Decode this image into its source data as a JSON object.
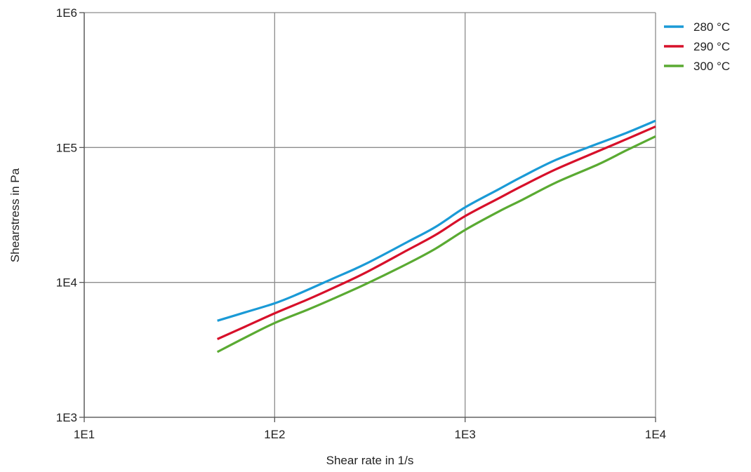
{
  "chart_data": {
    "type": "line",
    "title": "",
    "xlabel": "Shear rate in  1/s",
    "ylabel": "Shearstress in  Pa",
    "x_scale": "log",
    "y_scale": "log",
    "xlim": [
      10,
      10000
    ],
    "ylim": [
      1000,
      1000000
    ],
    "x_ticks": [
      {
        "value": 10,
        "label": "1E1"
      },
      {
        "value": 100,
        "label": "1E2"
      },
      {
        "value": 1000,
        "label": "1E3"
      },
      {
        "value": 10000,
        "label": "1E4"
      }
    ],
    "y_ticks": [
      {
        "value": 1000,
        "label": "1E3"
      },
      {
        "value": 10000,
        "label": "1E4"
      },
      {
        "value": 100000,
        "label": "1E5"
      },
      {
        "value": 1000000,
        "label": "1E6"
      }
    ],
    "grid": true,
    "legend_position": "top-right",
    "series": [
      {
        "name": "280 °C",
        "color": "#1a9ad6",
        "points": [
          [
            50,
            5200
          ],
          [
            70,
            6000
          ],
          [
            100,
            7000
          ],
          [
            130,
            8100
          ],
          [
            200,
            10600
          ],
          [
            300,
            13700
          ],
          [
            500,
            20000
          ],
          [
            700,
            25800
          ],
          [
            1000,
            36000
          ],
          [
            1500,
            49000
          ],
          [
            2000,
            61000
          ],
          [
            3000,
            81000
          ],
          [
            5000,
            107000
          ],
          [
            7000,
            128000
          ],
          [
            10000,
            158000
          ]
        ]
      },
      {
        "name": "290 °C",
        "color": "#d7102a",
        "points": [
          [
            50,
            3800
          ],
          [
            70,
            4700
          ],
          [
            100,
            5900
          ],
          [
            150,
            7500
          ],
          [
            200,
            9000
          ],
          [
            300,
            11800
          ],
          [
            500,
            17400
          ],
          [
            700,
            22500
          ],
          [
            1000,
            31000
          ],
          [
            1500,
            42000
          ],
          [
            2000,
            52000
          ],
          [
            3000,
            69000
          ],
          [
            5000,
            94000
          ],
          [
            7000,
            115000
          ],
          [
            10000,
            143000
          ]
        ]
      },
      {
        "name": "300 °C",
        "color": "#5aaa32",
        "points": [
          [
            50,
            3050
          ],
          [
            70,
            3900
          ],
          [
            100,
            5000
          ],
          [
            150,
            6300
          ],
          [
            200,
            7500
          ],
          [
            300,
            9700
          ],
          [
            500,
            13800
          ],
          [
            700,
            17800
          ],
          [
            1000,
            24500
          ],
          [
            1500,
            33500
          ],
          [
            2000,
            41000
          ],
          [
            3000,
            55000
          ],
          [
            5000,
            75000
          ],
          [
            7000,
            95000
          ],
          [
            10000,
            121000
          ]
        ]
      }
    ]
  }
}
